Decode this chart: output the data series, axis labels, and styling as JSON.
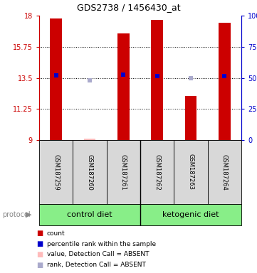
{
  "title": "GDS2738 / 1456430_at",
  "samples": [
    "GSM187259",
    "GSM187260",
    "GSM187261",
    "GSM187262",
    "GSM187263",
    "GSM187264"
  ],
  "ylim": [
    9,
    18
  ],
  "y_ticks": [
    9,
    11.25,
    13.5,
    15.75,
    18
  ],
  "y_right_ticks": [
    0,
    25,
    50,
    75,
    100
  ],
  "red_bar_tops": [
    17.8,
    9.1,
    16.7,
    17.7,
    12.2,
    17.5
  ],
  "red_bar_absent": [
    false,
    true,
    false,
    false,
    false,
    false
  ],
  "blue_marker_y": [
    13.7,
    null,
    13.75,
    13.65,
    null,
    13.65
  ],
  "blue_absent_y": [
    null,
    13.3,
    null,
    null,
    13.45,
    null
  ],
  "bar_bottom": 9,
  "red_color": "#cc0000",
  "red_absent_color": "#ffbbbb",
  "blue_color": "#0000cc",
  "blue_absent_color": "#aaaacc",
  "group_labels": [
    "control diet",
    "ketogenic diet"
  ],
  "group_color": "#88ee88",
  "protocol_label": "protocol",
  "legend_items": [
    {
      "label": "count",
      "color": "#cc0000"
    },
    {
      "label": "percentile rank within the sample",
      "color": "#0000cc"
    },
    {
      "label": "value, Detection Call = ABSENT",
      "color": "#ffbbbb"
    },
    {
      "label": "rank, Detection Call = ABSENT",
      "color": "#aaaacc"
    }
  ],
  "dotted_line_y": [
    11.25,
    13.5,
    15.75
  ],
  "left_axis_color": "#cc0000",
  "right_axis_color": "#0000cc"
}
